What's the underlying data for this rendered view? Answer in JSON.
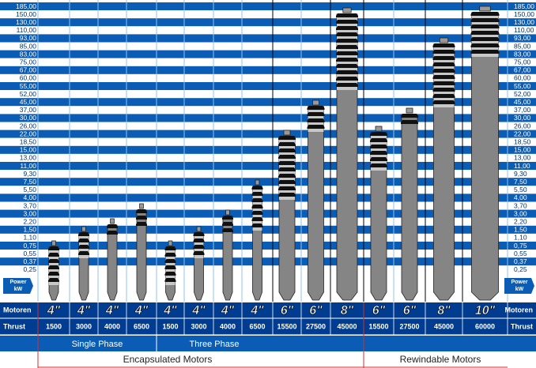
{
  "power_scale": [
    "185,00",
    "150,00",
    "130,00",
    "110,00",
    "93,00",
    "85,00",
    "83,00",
    "75,00",
    "67,00",
    "60,00",
    "55,00",
    "52,00",
    "45,00",
    "37,00",
    "30,00",
    "26,00",
    "22,00",
    "18,50",
    "15,00",
    "13,00",
    "11,00",
    "9,30",
    "7,50",
    "5,50",
    "4,00",
    "3,70",
    "3,00",
    "2,20",
    "1,50",
    "1,10",
    "0,75",
    "0,55",
    "0,37",
    "0,25"
  ],
  "power_badge": {
    "title": "Power",
    "unit": "kW"
  },
  "row_labels": {
    "size": "Motoren",
    "thrust": "Thrust"
  },
  "motors": [
    {
      "size": "4\"",
      "thrust": "1500"
    },
    {
      "size": "4\"",
      "thrust": "3000"
    },
    {
      "size": "4\"",
      "thrust": "4000"
    },
    {
      "size": "4\"",
      "thrust": "6500"
    },
    {
      "size": "4\"",
      "thrust": "1500"
    },
    {
      "size": "4\"",
      "thrust": "3000"
    },
    {
      "size": "4\"",
      "thrust": "4000"
    },
    {
      "size": "4\"",
      "thrust": "6500"
    },
    {
      "size": "6\"",
      "thrust": "15500"
    },
    {
      "size": "6\"",
      "thrust": "27500"
    },
    {
      "size": "8\"",
      "thrust": "45000"
    },
    {
      "size": "6\"",
      "thrust": "15500"
    },
    {
      "size": "6\"",
      "thrust": "27500"
    },
    {
      "size": "8\"",
      "thrust": "45000"
    },
    {
      "size": "10\"",
      "thrust": "60000"
    }
  ],
  "phases": [
    "Single Phase",
    "Three Phase"
  ],
  "groups": [
    "Encapsulated Motors",
    "Rewindable Motors"
  ]
}
